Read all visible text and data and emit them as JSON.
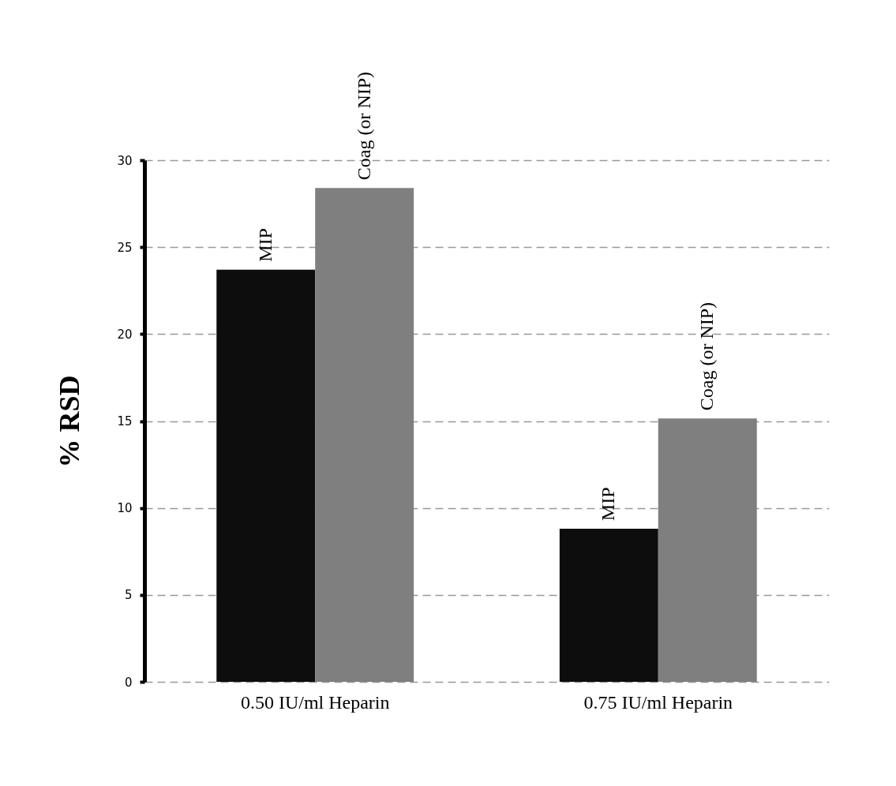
{
  "chart_data": {
    "type": "bar",
    "ylabel": "% RSD",
    "categories": [
      "0.50 IU/ml Heparin",
      "0.75 IU/ml Heparin"
    ],
    "series": [
      {
        "name": "MIP",
        "color": "#0d0d0d",
        "values": [
          23.7,
          8.8
        ]
      },
      {
        "name": "Coag (or NIP)",
        "color": "#7f7f7f",
        "values": [
          28.4,
          15.15
        ]
      }
    ],
    "ylim": [
      0,
      30
    ],
    "yticks": [
      0,
      5,
      10,
      15,
      20,
      25,
      30
    ],
    "grid": "y",
    "legend": false
  }
}
